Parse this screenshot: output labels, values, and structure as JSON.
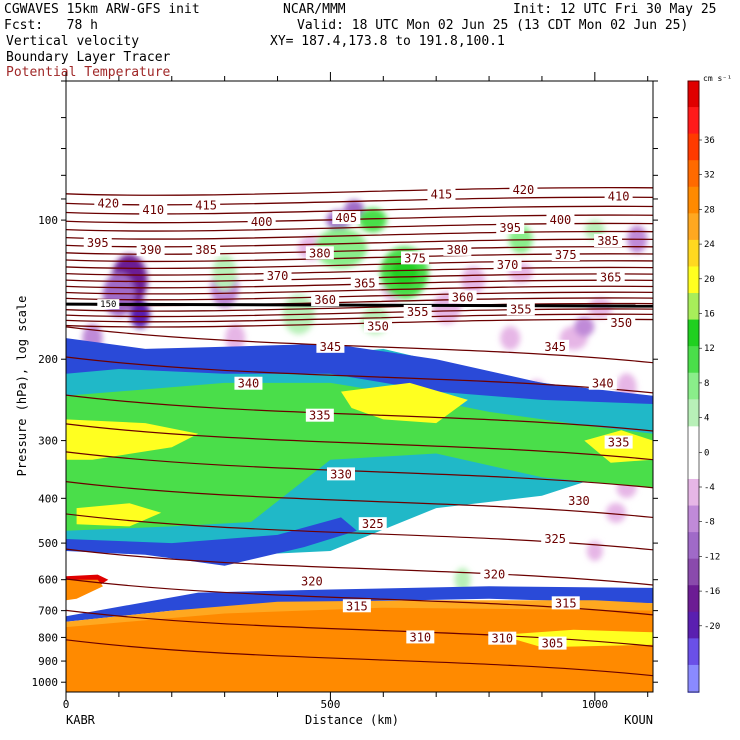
{
  "header": {
    "model": "CGWAVES 15km ARW-GFS init",
    "org": "NCAR/MMM",
    "init": "Init: 12 UTC Fri 30 May 25",
    "fcst": "Fcst:   78 h",
    "valid": "Valid: 18 UTC Mon 02 Jun 25 (13 CDT Mon 02 Jun 25)",
    "xy": "XY= 187.4,173.8 to 191.8,100.1",
    "field1": "Vertical velocity",
    "field2": "Boundary Layer Tracer",
    "field3": "Potential Temperature"
  },
  "colors": {
    "theta": "#6b0000",
    "bl_line": "#000000",
    "palette": [
      "#8a8aff",
      "#6a50e8",
      "#5a1fb0",
      "#6c1c94",
      "#8a4aac",
      "#a06ac8",
      "#c08ad8",
      "#e6b6e6",
      "#ffffff",
      "#ffffff",
      "#b8f0b8",
      "#8aee8a",
      "#4ade4a",
      "#20d020",
      "#a8ee5a",
      "#ffff20",
      "#ffd820",
      "#ffa820",
      "#ff8a00",
      "#ff6a00",
      "#ff3a00",
      "#ff1a1a",
      "#e00000"
    ]
  },
  "chart_data": {
    "type": "heatmap",
    "title": "Vertical velocity",
    "xlabel": "Distance (km)",
    "ylabel": "Pressure (hPa), log scale",
    "xlim": [
      0,
      1110
    ],
    "ylim": [
      1050,
      50
    ],
    "y_scale": "log",
    "x_ticks": [
      "0",
      "500",
      "1000"
    ],
    "y_ticks": [
      "100",
      "200",
      "300",
      "400",
      "500",
      "600",
      "700",
      "800",
      "900",
      "1000"
    ],
    "endpoints": {
      "left": "KABR",
      "right": "KOUN"
    },
    "colorbar": {
      "unit": "cm s⁻¹",
      "labels": [
        "36",
        "32",
        "28",
        "24",
        "20",
        "16",
        "12",
        "8",
        "4",
        "0",
        "-4",
        "-8",
        "-12",
        "-16",
        "-20"
      ]
    },
    "theta_contours": [
      {
        "label": "420",
        "x": 80,
        "p": 92
      },
      {
        "label": "410",
        "x": 165,
        "p": 95
      },
      {
        "label": "415",
        "x": 265,
        "p": 93
      },
      {
        "label": "420",
        "x": 865,
        "p": 86
      },
      {
        "label": "415",
        "x": 710,
        "p": 88
      },
      {
        "label": "410",
        "x": 1045,
        "p": 89
      },
      {
        "label": "400",
        "x": 370,
        "p": 101
      },
      {
        "label": "405",
        "x": 530,
        "p": 99
      },
      {
        "label": "395",
        "x": 840,
        "p": 104
      },
      {
        "label": "400",
        "x": 935,
        "p": 100
      },
      {
        "label": "395",
        "x": 60,
        "p": 112
      },
      {
        "label": "390",
        "x": 160,
        "p": 116
      },
      {
        "label": "385",
        "x": 265,
        "p": 116
      },
      {
        "label": "385",
        "x": 1025,
        "p": 111
      },
      {
        "label": "380",
        "x": 480,
        "p": 118
      },
      {
        "label": "380",
        "x": 740,
        "p": 116
      },
      {
        "label": "375",
        "x": 660,
        "p": 121
      },
      {
        "label": "375",
        "x": 945,
        "p": 119
      },
      {
        "label": "370",
        "x": 400,
        "p": 132
      },
      {
        "label": "370",
        "x": 835,
        "p": 125
      },
      {
        "label": "365",
        "x": 565,
        "p": 137
      },
      {
        "label": "365",
        "x": 1030,
        "p": 133
      },
      {
        "label": "360",
        "x": 490,
        "p": 149
      },
      {
        "label": "360",
        "x": 750,
        "p": 147
      },
      {
        "label": "355",
        "x": 665,
        "p": 158
      },
      {
        "label": "355",
        "x": 860,
        "p": 156
      },
      {
        "label": "350",
        "x": 590,
        "p": 170
      },
      {
        "label": "350",
        "x": 1050,
        "p": 167
      },
      {
        "label": "345",
        "x": 500,
        "p": 188
      },
      {
        "label": "345",
        "x": 925,
        "p": 188
      },
      {
        "label": "340",
        "x": 345,
        "p": 226
      },
      {
        "label": "340",
        "x": 1015,
        "p": 226
      },
      {
        "label": "335",
        "x": 480,
        "p": 265
      },
      {
        "label": "335",
        "x": 1045,
        "p": 303
      },
      {
        "label": "330",
        "x": 520,
        "p": 355
      },
      {
        "label": "330",
        "x": 970,
        "p": 405
      },
      {
        "label": "325",
        "x": 580,
        "p": 455
      },
      {
        "label": "325",
        "x": 925,
        "p": 490
      },
      {
        "label": "320",
        "x": 465,
        "p": 605
      },
      {
        "label": "320",
        "x": 810,
        "p": 585
      },
      {
        "label": "315",
        "x": 550,
        "p": 685
      },
      {
        "label": "315",
        "x": 945,
        "p": 675
      },
      {
        "label": "310",
        "x": 670,
        "p": 800
      },
      {
        "label": "310",
        "x": 825,
        "p": 805
      },
      {
        "label": "305",
        "x": 920,
        "p": 825
      }
    ],
    "bl_tracer_label": {
      "label": "150",
      "x": 80,
      "p": 152
    }
  }
}
